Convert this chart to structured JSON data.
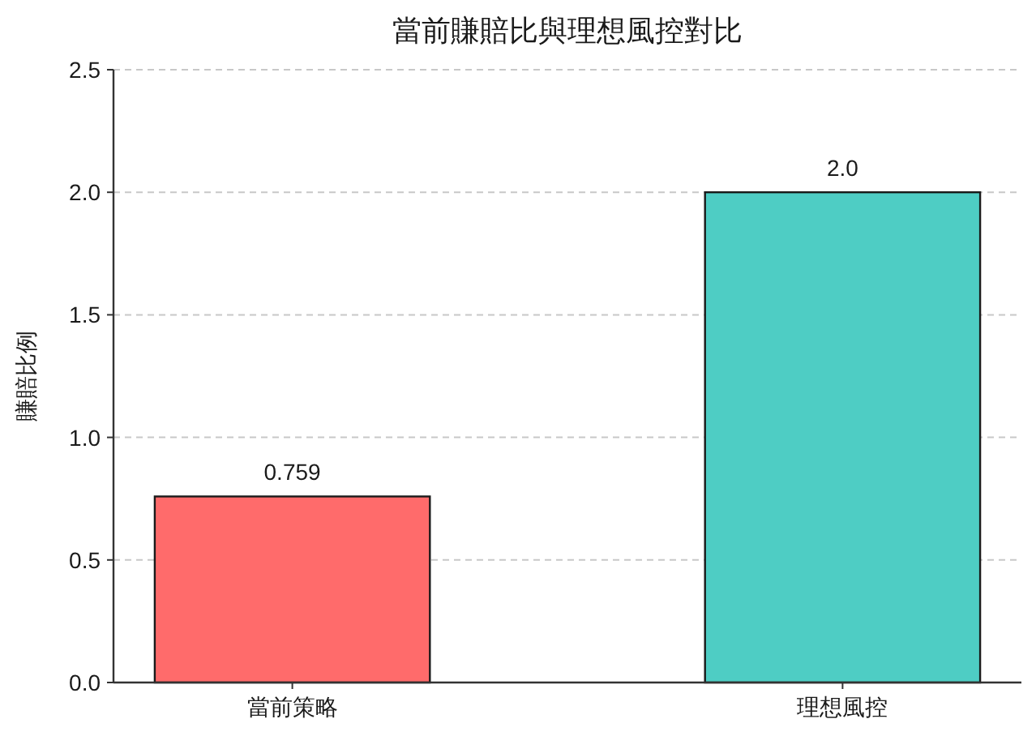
{
  "chart_data": {
    "type": "bar",
    "title": "當前賺賠比與理想風控對比",
    "ylabel": "賺賠比例",
    "categories": [
      "當前策略",
      "理想風控"
    ],
    "values": [
      0.759,
      2.0
    ],
    "colors": [
      "#ff6b6b",
      "#4ecdc4"
    ],
    "value_labels": [
      "0.759",
      "2.0"
    ],
    "ylim": [
      0,
      2.5
    ],
    "yticks": [
      {
        "value": 0,
        "label": "0.0"
      },
      {
        "value": 0.5,
        "label": "0.5"
      },
      {
        "value": 1,
        "label": "1.0"
      },
      {
        "value": 1.5,
        "label": "1.5"
      },
      {
        "value": 2,
        "label": "2.0"
      },
      {
        "value": 2.5,
        "label": "2.5"
      }
    ],
    "grid": "y"
  }
}
